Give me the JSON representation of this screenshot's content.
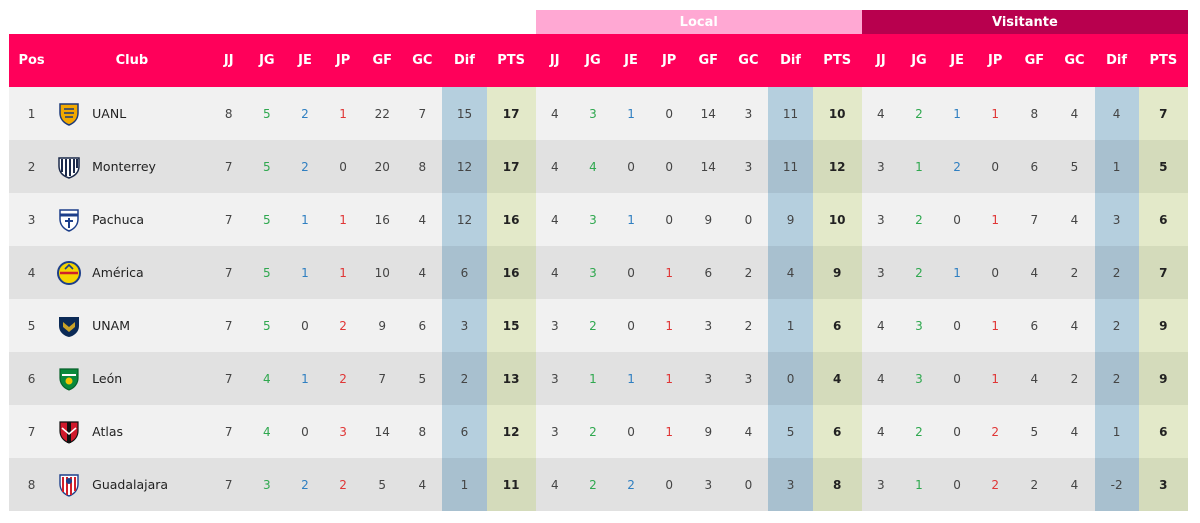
{
  "groups": {
    "local": "Local",
    "visitante": "Visitante"
  },
  "columns": {
    "pos": "Pos",
    "club": "Club",
    "stats": [
      "JJ",
      "JG",
      "JE",
      "JP",
      "GF",
      "GC",
      "Dif",
      "PTS"
    ]
  },
  "colors": {
    "header": "#ff005a",
    "local_header": "#ffa8d3",
    "visitante_header": "#b8004e",
    "win": "#2fa84f",
    "draw": "#2f7fc1",
    "loss": "#e03636"
  },
  "rows": [
    {
      "pos": "1",
      "club": "UANL",
      "crest": "uanl-crest-icon",
      "total": [
        "8",
        "5",
        "2",
        "1",
        "22",
        "7",
        "15",
        "17"
      ],
      "local": [
        "4",
        "3",
        "1",
        "0",
        "14",
        "3",
        "11",
        "10"
      ],
      "visitante": [
        "4",
        "2",
        "1",
        "1",
        "8",
        "4",
        "4",
        "7"
      ]
    },
    {
      "pos": "2",
      "club": "Monterrey",
      "crest": "monterrey-crest-icon",
      "total": [
        "7",
        "5",
        "2",
        "0",
        "20",
        "8",
        "12",
        "17"
      ],
      "local": [
        "4",
        "4",
        "0",
        "0",
        "14",
        "3",
        "11",
        "12"
      ],
      "visitante": [
        "3",
        "1",
        "2",
        "0",
        "6",
        "5",
        "1",
        "5"
      ]
    },
    {
      "pos": "3",
      "club": "Pachuca",
      "crest": "pachuca-crest-icon",
      "total": [
        "7",
        "5",
        "1",
        "1",
        "16",
        "4",
        "12",
        "16"
      ],
      "local": [
        "4",
        "3",
        "1",
        "0",
        "9",
        "0",
        "9",
        "10"
      ],
      "visitante": [
        "3",
        "2",
        "0",
        "1",
        "7",
        "4",
        "3",
        "6"
      ]
    },
    {
      "pos": "4",
      "club": "América",
      "crest": "america-crest-icon",
      "total": [
        "7",
        "5",
        "1",
        "1",
        "10",
        "4",
        "6",
        "16"
      ],
      "local": [
        "4",
        "3",
        "0",
        "1",
        "6",
        "2",
        "4",
        "9"
      ],
      "visitante": [
        "3",
        "2",
        "1",
        "0",
        "4",
        "2",
        "2",
        "7"
      ]
    },
    {
      "pos": "5",
      "club": "UNAM",
      "crest": "unam-crest-icon",
      "total": [
        "7",
        "5",
        "0",
        "2",
        "9",
        "6",
        "3",
        "15"
      ],
      "local": [
        "3",
        "2",
        "0",
        "1",
        "3",
        "2",
        "1",
        "6"
      ],
      "visitante": [
        "4",
        "3",
        "0",
        "1",
        "6",
        "4",
        "2",
        "9"
      ]
    },
    {
      "pos": "6",
      "club": "León",
      "crest": "leon-crest-icon",
      "total": [
        "7",
        "4",
        "1",
        "2",
        "7",
        "5",
        "2",
        "13"
      ],
      "local": [
        "3",
        "1",
        "1",
        "1",
        "3",
        "3",
        "0",
        "4"
      ],
      "visitante": [
        "4",
        "3",
        "0",
        "1",
        "4",
        "2",
        "2",
        "9"
      ]
    },
    {
      "pos": "7",
      "club": "Atlas",
      "crest": "atlas-crest-icon",
      "total": [
        "7",
        "4",
        "0",
        "3",
        "14",
        "8",
        "6",
        "12"
      ],
      "local": [
        "3",
        "2",
        "0",
        "1",
        "9",
        "4",
        "5",
        "6"
      ],
      "visitante": [
        "4",
        "2",
        "0",
        "2",
        "5",
        "4",
        "1",
        "6"
      ]
    },
    {
      "pos": "8",
      "club": "Guadalajara",
      "crest": "guadalajara-crest-icon",
      "total": [
        "7",
        "3",
        "2",
        "2",
        "5",
        "4",
        "1",
        "11"
      ],
      "local": [
        "4",
        "2",
        "2",
        "0",
        "3",
        "0",
        "3",
        "8"
      ],
      "visitante": [
        "3",
        "1",
        "0",
        "2",
        "2",
        "4",
        "-2",
        "3"
      ]
    }
  ]
}
